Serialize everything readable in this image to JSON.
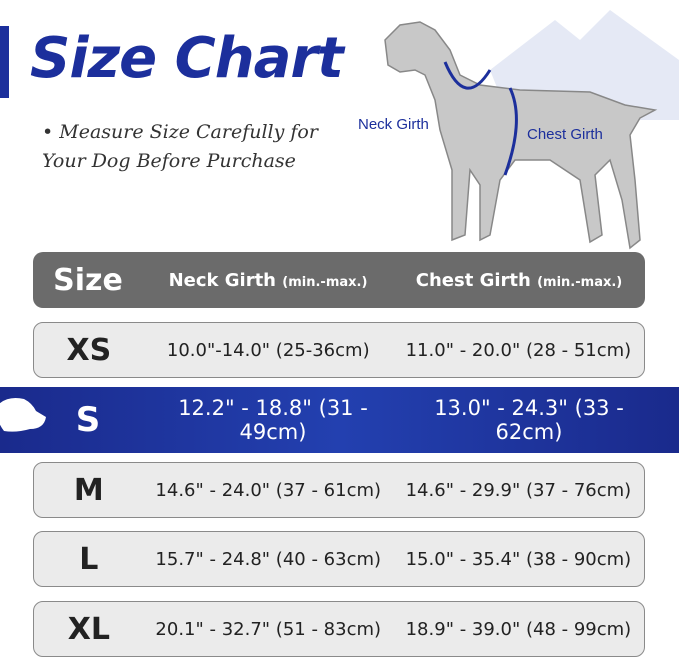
{
  "title": "Size Chart",
  "note": "• Measure Size Carefully for Your Dog Before Purchase",
  "diagram": {
    "neck_label": "Neck Girth",
    "chest_label": "Chest Girth"
  },
  "colors": {
    "brand": "#1c2f9c",
    "header": "#6b6b6b",
    "row": "#ebebeb"
  },
  "table": {
    "headers": {
      "size": "Size",
      "neck": "Neck Girth",
      "neck_unit": "(min.-max.)",
      "chest": "Chest Girth",
      "chest_unit": "(min.-max.)"
    },
    "rows": [
      {
        "size": "XS",
        "neck": "10.0\"-14.0\" (25-36cm)",
        "chest": "11.0\" - 20.0\" (28 - 51cm)"
      },
      {
        "size": "S",
        "neck": "12.2\" - 18.8\" (31 - 49cm)",
        "chest": "13.0\" - 24.3\" (33 - 62cm)",
        "highlighted": true
      },
      {
        "size": "M",
        "neck": "14.6\" - 24.0\" (37 - 61cm)",
        "chest": "14.6\" - 29.9\" (37 - 76cm)"
      },
      {
        "size": "L",
        "neck": "15.7\" - 24.8\" (40 - 63cm)",
        "chest": "15.0\" - 35.4\" (38 - 90cm)"
      },
      {
        "size": "XL",
        "neck": "20.1\" - 32.7\" (51 - 83cm)",
        "chest": "18.9\" - 39.0\" (48 - 99cm)"
      }
    ]
  }
}
